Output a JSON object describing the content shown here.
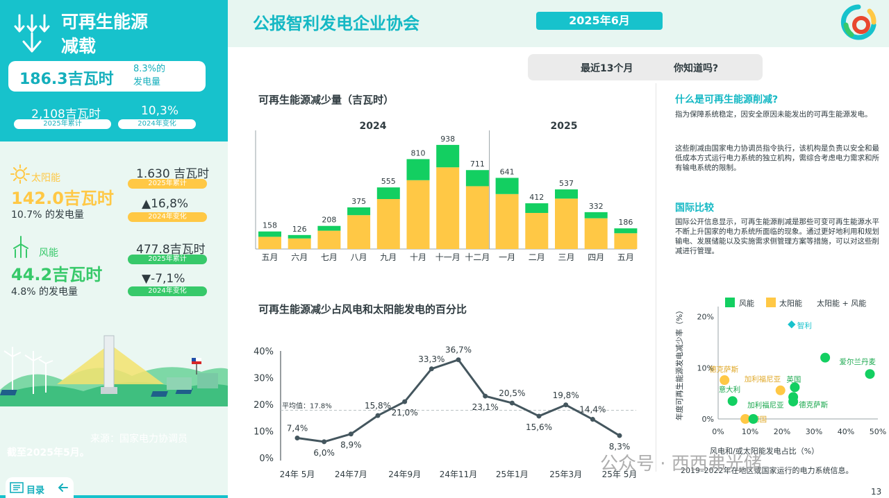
{
  "sidebar": {
    "title_line1": "可再生能源",
    "title_line2": "减载",
    "total_value": "186.3吉瓦时",
    "total_share_line1": "8.3%的",
    "total_share_line2": "发电量",
    "cum_value": "2,108吉瓦时",
    "cum_label": "2025年累计",
    "change_value": "10,3%",
    "change_label": "2024年变化",
    "solar": {
      "name": "太阳能",
      "value": "142.0吉瓦时",
      "share": "10.7% 的发电量",
      "cum_value": "1.630 吉瓦时",
      "cum_label": "2025年累计",
      "change_value": "▲16,8%",
      "change_label": "2024年变化"
    },
    "wind": {
      "name": "风能",
      "value": "44.2吉瓦时",
      "share": "4.8% 的发电量",
      "cum_value": "477.8吉瓦时",
      "cum_label": "2025年累计",
      "change_value": "▼-7,1%",
      "change_label": "2024年变化"
    },
    "source": "来源：国家电力协调员",
    "asof": "截至2025年5月。",
    "toc": "目录",
    "colors": {
      "teal": "#17c2cc",
      "solar": "#ffc845",
      "wind": "#37c96a"
    }
  },
  "header": {
    "title": "公报智利发电企业协会",
    "date": "2025年6月"
  },
  "tabs": [
    "最近13个月",
    "你知道吗?"
  ],
  "chart_data": [
    {
      "type": "bar",
      "title": "可再生能源减少量（吉瓦时）",
      "unit": "吉瓦时",
      "group_labels": [
        "2024",
        "2025"
      ],
      "categories": [
        "五月",
        "六月",
        "七月",
        "八月",
        "九月",
        "十月",
        "十一月",
        "十二月",
        "一月",
        "二月",
        "三月",
        "四月",
        "五月"
      ],
      "totals": [
        158,
        126,
        208,
        375,
        555,
        810,
        938,
        711,
        641,
        412,
        537,
        332,
        186
      ],
      "series": [
        {
          "name": "太阳能",
          "color": "#ffc845",
          "values": [
            110,
            95,
            165,
            305,
            450,
            620,
            736,
            566,
            495,
            325,
            454,
            277,
            142
          ]
        },
        {
          "name": "风能",
          "color": "#13cf61",
          "values": [
            48,
            31,
            43,
            70,
            105,
            190,
            202,
            145,
            146,
            87,
            83,
            55,
            44
          ]
        }
      ],
      "ylim": [
        0,
        1000
      ]
    },
    {
      "type": "line",
      "title": "可再生能源减少占风电和太阳能发电的百分比",
      "x": [
        "24年 5月",
        "24年6月",
        "24年7月",
        "24年8月",
        "24年9月",
        "24年10月",
        "24年11月",
        "24年12月",
        "25年1月",
        "25年2月",
        "25年3月",
        "25年4月",
        "25年 5月"
      ],
      "x_tick_labels": [
        "24年 5月",
        "24年7月",
        "24年9月",
        "24年11月",
        "25年1月",
        "25年3月",
        "25年 5月"
      ],
      "values": [
        7.4,
        6.0,
        8.9,
        15.8,
        21.0,
        33.3,
        36.7,
        23.1,
        20.5,
        15.6,
        19.8,
        14.4,
        8.3
      ],
      "value_labels": [
        "7,4%",
        "6,0%",
        "8,9%",
        "15,8%",
        "21,0%",
        "33,3%",
        "36,7%",
        "23,1%",
        "20,5%",
        "15,6%",
        "19,8%",
        "14,4%",
        "8,3%"
      ],
      "y_ticks": [
        "0%",
        "10%",
        "20%",
        "30%",
        "40%"
      ],
      "ylim": [
        0,
        40
      ],
      "average": 17.8,
      "average_label": "平均值：17.8%",
      "color": "#44565e"
    },
    {
      "type": "scatter",
      "xlabel": "风电和/或太阳能发电占比（%）",
      "ylabel": "年度可再生能源发电减少率（%）",
      "x_ticks": [
        "0%",
        "10%",
        "20%",
        "30%",
        "40%",
        "50%"
      ],
      "y_ticks": [
        "0%",
        "10%",
        "20%"
      ],
      "xlim": [
        0,
        50
      ],
      "ylim": [
        0,
        22
      ],
      "legend": [
        {
          "name": "风能",
          "color": "#13cf61"
        },
        {
          "name": "太阳能",
          "color": "#ffc845"
        },
        {
          "name": "太阳能 + 风能",
          "color": "#17c2cc"
        }
      ],
      "points": [
        {
          "label": "智利",
          "x": 23,
          "y": 18.5,
          "kind": "both"
        },
        {
          "label": "德克萨斯",
          "x": 2,
          "y": 7.6,
          "kind": "solar"
        },
        {
          "label": "加利福尼亚",
          "x": 19.5,
          "y": 5.6,
          "kind": "solar"
        },
        {
          "label": "德国",
          "x": 8.5,
          "y": 0,
          "kind": "solar"
        },
        {
          "label": "爱尔兰丹麦",
          "x": 47.5,
          "y": 8.8,
          "kind": "wind"
        },
        {
          "label": "",
          "x": 33.5,
          "y": 12,
          "kind": "wind"
        },
        {
          "label": "英国",
          "x": 24,
          "y": 6.2,
          "kind": "wind"
        },
        {
          "label": "意大利",
          "x": 4.5,
          "y": 3.5,
          "kind": "wind"
        },
        {
          "label": "加利福尼亚",
          "x": 23.5,
          "y": 4.3,
          "kind": "wind"
        },
        {
          "label": "德克萨斯",
          "x": 23.5,
          "y": 3.4,
          "kind": "wind"
        },
        {
          "label": "",
          "x": 11,
          "y": 0,
          "kind": "wind"
        }
      ],
      "note": "2019–2022年在地区或国家运行的电力系统信息。"
    }
  ],
  "right_panel": {
    "q1_title": "什么是可再生能源削减?",
    "q1_p1": "指为保障系统稳定，因安全原因未能发出的可再生能源发电。",
    "q1_p2": "这些削减由国家电力协调员指令执行，该机构是负责以安全和最低成本方式运行电力系统的独立机构，需综合考虑电力需求和所有输电系统的限制。",
    "q2_title": "国际比较",
    "q2_p1": "国际公开信息显示，可再生能源削减是那些可变可再生能源水平不断上升国家的电力系统所面临的现象。通过更好地利用和规划输电、发展储能以及实施需求侧管理方案等措施，可以对这些削减进行管理。"
  },
  "watermark": "公众号 · 西西弗光储",
  "page_number": "13"
}
